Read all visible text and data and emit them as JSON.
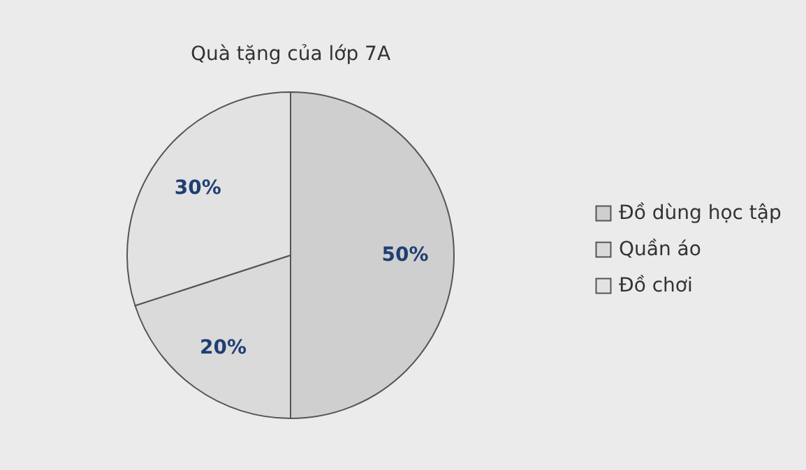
{
  "chart_data": {
    "type": "pie",
    "title": "Quà tặng của lớp 7A",
    "categories": [
      "Đồ dùng học tập",
      "Quần áo",
      "Đồ chơi"
    ],
    "values": [
      50,
      20,
      30
    ],
    "colors": [
      "#cfcfcf",
      "#dadada",
      "#e2e2e2"
    ],
    "value_labels": [
      "50%",
      "20%",
      "30%"
    ],
    "legend": "right"
  }
}
